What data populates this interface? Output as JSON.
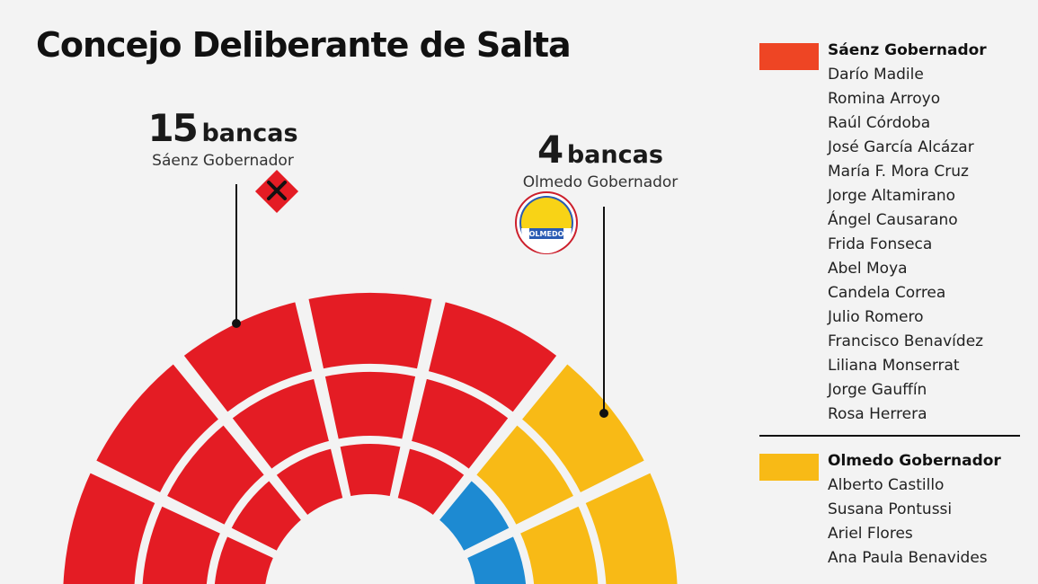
{
  "title": "Concejo Deliberante de Salta",
  "colors": {
    "saenz": "#e41c24",
    "olmedo": "#f8ba16",
    "other": "#1d8ad2",
    "background": "#f3f3f3"
  },
  "callouts": {
    "saenz": {
      "count": "15",
      "word": "bancas",
      "party": "Sáenz Gobernador",
      "logo_icon": "saenz-party-logo-icon"
    },
    "olmedo": {
      "count": "4",
      "word": "bancas",
      "party": "Olmedo Gobernador",
      "logo_icon": "olmedo-party-logo-icon"
    }
  },
  "logo_text": {
    "olmedo": "OLMEDO"
  },
  "legend": {
    "saenz": {
      "heading": "Sáenz Gobernador",
      "members": [
        "Darío Madile",
        "Romina Arroyo",
        "Raúl Córdoba",
        "José García Alcázar",
        "María F. Mora Cruz",
        "Jorge Altamirano",
        "Ángel Causarano",
        "Frida Fonseca",
        "Abel Moya",
        "Candela Correa",
        "Julio Romero",
        "Francisco Benavídez",
        "Liliana Monserrat",
        "Jorge Gauffín",
        "Rosa Herrera"
      ]
    },
    "olmedo": {
      "heading": "Olmedo Gobernador",
      "members": [
        "Alberto Castillo",
        "Susana Pontussi",
        "Ariel Flores",
        "Ana Paula Benavides"
      ]
    }
  },
  "chamber": {
    "rings": [
      {
        "ring": "outer",
        "seats": [
          "saenz",
          "saenz",
          "saenz",
          "saenz",
          "saenz",
          "olmedo",
          "olmedo"
        ]
      },
      {
        "ring": "middle",
        "seats": [
          "saenz",
          "saenz",
          "saenz",
          "saenz",
          "saenz",
          "olmedo",
          "olmedo"
        ]
      },
      {
        "ring": "inner",
        "seats": [
          "saenz",
          "saenz",
          "saenz",
          "saenz",
          "saenz",
          "other",
          "other"
        ]
      }
    ]
  }
}
